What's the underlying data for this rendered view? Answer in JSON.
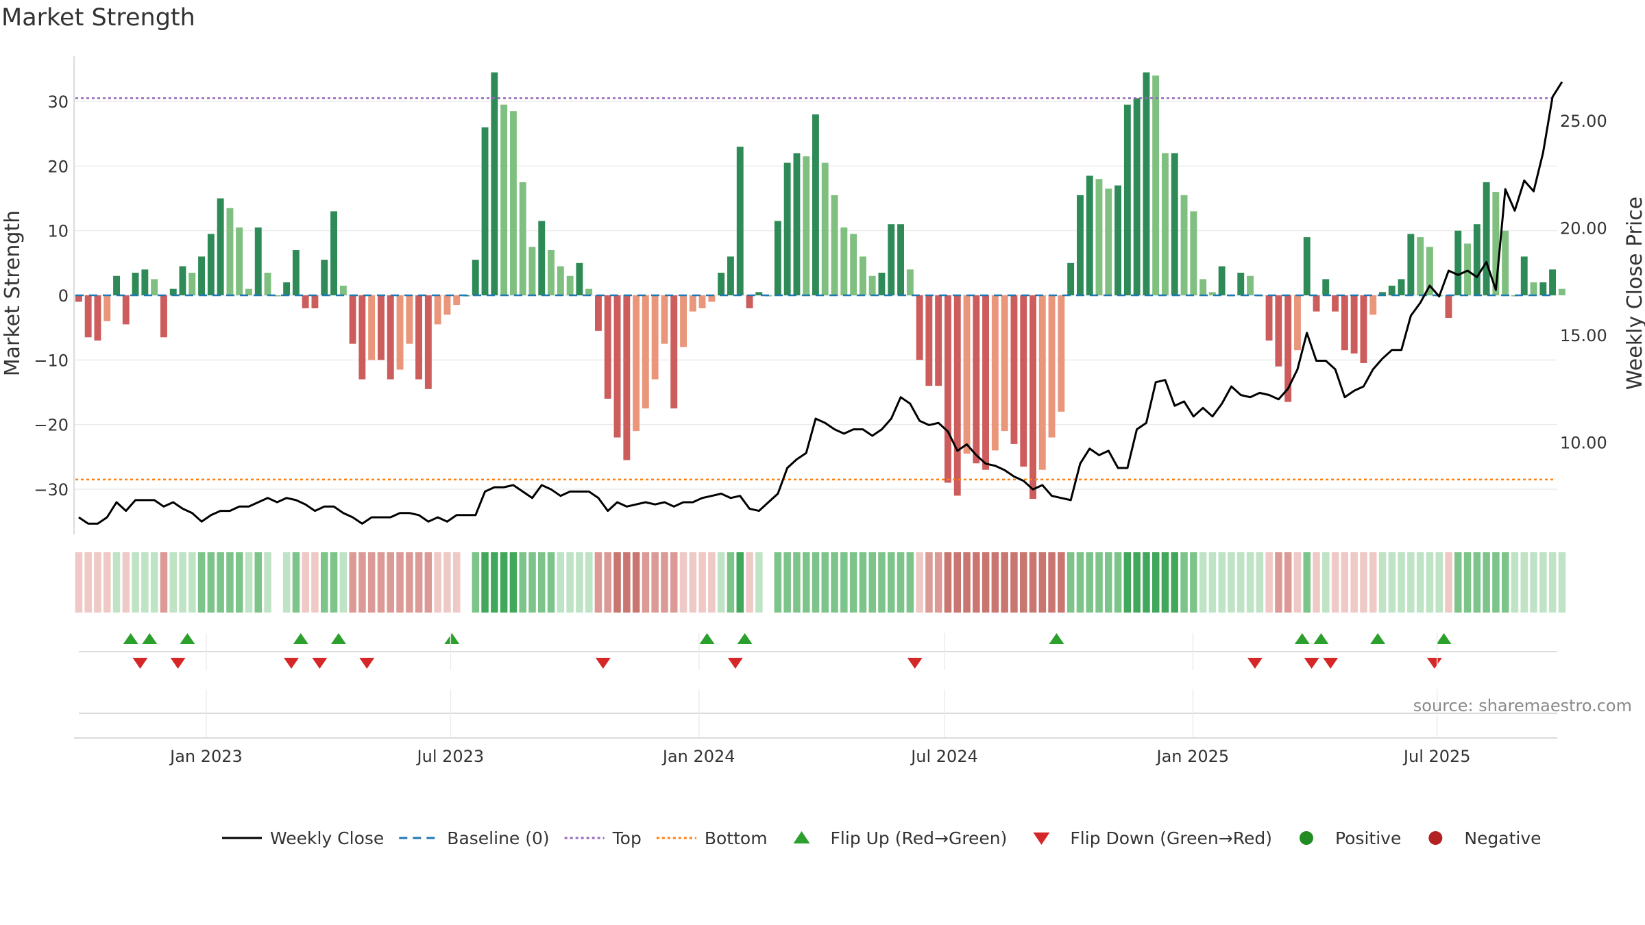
{
  "title": "Market Strength",
  "source": "source: sharemaestro.com",
  "colors": {
    "green_dark": "#2e8b57",
    "green_light": "#7fbf7f",
    "red_dark": "#cd5c5c",
    "red_light": "#e9967a",
    "close_line": "#000000",
    "baseline": "#1f77b4",
    "top_line": "#9467bd",
    "bottom_line": "#ff7f0e",
    "flip_up": "#2ca02c",
    "flip_down": "#d62728",
    "positive": "#228b22",
    "negative": "#b22222"
  },
  "chart_data": {
    "type": "bar",
    "ylabel_left": "Market Strength",
    "ylabel_right": "Weekly Close Price",
    "ylim_left": [
      -37,
      37
    ],
    "ylim_right": [
      5.7,
      28.0
    ],
    "yticks_left": [
      {
        "v": 30,
        "label": "30"
      },
      {
        "v": 20,
        "label": "20"
      },
      {
        "v": 10,
        "label": "10"
      },
      {
        "v": 0,
        "label": "0"
      },
      {
        "v": -10,
        "label": "−10"
      },
      {
        "v": -20,
        "label": "−20"
      },
      {
        "v": -30,
        "label": "−30"
      }
    ],
    "yticks_right": [
      {
        "v": 25,
        "label": "25.00"
      },
      {
        "v": 20,
        "label": "20.00"
      },
      {
        "v": 15,
        "label": "15.00"
      },
      {
        "v": 10,
        "label": "10.00"
      }
    ],
    "top_level": 30.5,
    "bottom_level": -28.5,
    "x_start": "2022-09-25",
    "x_end": "2025-09-28",
    "xticks": [
      {
        "date": "2023-01-01",
        "label": "Jan 2023"
      },
      {
        "date": "2023-07-01",
        "label": "Jul 2023"
      },
      {
        "date": "2024-01-01",
        "label": "Jan 2024"
      },
      {
        "date": "2024-07-01",
        "label": "Jul 2024"
      },
      {
        "date": "2025-01-01",
        "label": "Jan 2025"
      },
      {
        "date": "2025-07-01",
        "label": "Jul 2025"
      }
    ],
    "strength": [
      -1,
      -6.5,
      -7,
      -4,
      3,
      -4.5,
      3.5,
      4,
      2.5,
      -6.5,
      1,
      4.5,
      3.5,
      6,
      9.5,
      15,
      13.5,
      10.5,
      1,
      10.5,
      3.5,
      0,
      2,
      7,
      -2,
      -2,
      5.5,
      13,
      1.5,
      -7.5,
      -13,
      -10,
      -10,
      -13,
      -11.5,
      -7.5,
      -13,
      -14.5,
      -4.5,
      -3,
      -1.5,
      0,
      5.5,
      26,
      34.5,
      29.5,
      28.5,
      17.5,
      7.5,
      11.5,
      7,
      4.5,
      3,
      5,
      1,
      -5.5,
      -16,
      -22,
      -25.5,
      -21,
      -17.5,
      -13,
      -7.5,
      -17.5,
      -8,
      -2.5,
      -2,
      -1,
      3.5,
      6,
      23,
      -2,
      0.5,
      0,
      11.5,
      20.5,
      22,
      21.5,
      28,
      20.5,
      15.5,
      10.5,
      9.5,
      6,
      3,
      3.5,
      11,
      11,
      4,
      -10,
      -14,
      -14,
      -29,
      -31,
      -24.5,
      -26,
      -27,
      -24,
      -21,
      -23,
      -26.5,
      -31.5,
      -27,
      -22,
      -18,
      5,
      15.5,
      18.5,
      18,
      16.5,
      17,
      29.5,
      30.5,
      34.5,
      34,
      22,
      22,
      15.5,
      13,
      2.5,
      0.5,
      4.5,
      0,
      3.5,
      3,
      0,
      -7,
      -11,
      -16.5,
      -8.5,
      9,
      -2.5,
      2.5,
      -2.5,
      -8.5,
      -9,
      -10.5,
      -3,
      0.5,
      1.5,
      2.5,
      9.5,
      9,
      7.5,
      0,
      -3.5,
      10,
      8,
      11,
      17.5,
      16,
      10,
      0,
      6,
      2,
      2,
      4,
      1
    ],
    "close": [
      6.5,
      6.2,
      6.2,
      6.5,
      7.2,
      6.8,
      7.3,
      7.3,
      7.3,
      7.0,
      7.2,
      6.9,
      6.7,
      6.3,
      6.6,
      6.8,
      6.8,
      7.0,
      7.0,
      7.2,
      7.4,
      7.2,
      7.4,
      7.3,
      7.1,
      6.8,
      7.0,
      7.0,
      6.7,
      6.5,
      6.2,
      6.5,
      6.5,
      6.5,
      6.7,
      6.7,
      6.6,
      6.3,
      6.5,
      6.3,
      6.6,
      6.6,
      6.6,
      7.7,
      7.9,
      7.9,
      8.0,
      7.7,
      7.4,
      8.0,
      7.8,
      7.5,
      7.7,
      7.7,
      7.7,
      7.4,
      6.8,
      7.2,
      7.0,
      7.1,
      7.2,
      7.1,
      7.2,
      7.0,
      7.2,
      7.2,
      7.4,
      7.5,
      7.6,
      7.4,
      7.5,
      6.9,
      6.8,
      7.2,
      7.6,
      8.8,
      9.2,
      9.5,
      11.1,
      10.9,
      10.6,
      10.4,
      10.6,
      10.6,
      10.3,
      10.6,
      11.1,
      12.1,
      11.8,
      11.0,
      10.8,
      10.9,
      10.5,
      9.6,
      9.9,
      9.4,
      9.0,
      8.9,
      8.7,
      8.4,
      8.2,
      7.8,
      8.0,
      7.5,
      7.4,
      7.3,
      9.0,
      9.7,
      9.4,
      9.6,
      8.8,
      8.8,
      10.6,
      10.9,
      12.8,
      12.9,
      11.7,
      11.9,
      11.2,
      11.6,
      11.2,
      11.8,
      12.6,
      12.2,
      12.1,
      12.3,
      12.2,
      12.0,
      12.5,
      13.4,
      15.1,
      13.8,
      13.8,
      13.4,
      12.1,
      12.4,
      12.6,
      13.4,
      13.9,
      14.3,
      14.3,
      15.9,
      16.5,
      17.3,
      16.8,
      18.0,
      17.8,
      18.0,
      17.7,
      18.4,
      17.1,
      21.8,
      20.8,
      22.2,
      21.7,
      23.5,
      26.1,
      26.8
    ],
    "band_shades": [
      -1,
      -1,
      -1,
      -1,
      1,
      -1,
      1,
      1,
      1,
      -2,
      1,
      1,
      1,
      2,
      2,
      2,
      2,
      2,
      1,
      2,
      1,
      0,
      1,
      2,
      -1,
      -1,
      2,
      2,
      1,
      -2,
      -2,
      -2,
      -2,
      -2,
      -2,
      -2,
      -2,
      -2,
      -1,
      -1,
      -1,
      0,
      2,
      3,
      3,
      3,
      3,
      2,
      2,
      2,
      2,
      1,
      1,
      1,
      1,
      -2,
      -2,
      -3,
      -3,
      -3,
      -2,
      -2,
      -2,
      -2,
      -1,
      -1,
      -1,
      -1,
      1,
      2,
      3,
      -1,
      1,
      0,
      2,
      2,
      2,
      2,
      2,
      2,
      2,
      2,
      2,
      2,
      2,
      2,
      2,
      2,
      2,
      -1,
      -2,
      -2,
      -3,
      -3,
      -3,
      -3,
      -3,
      -3,
      -3,
      -3,
      -3,
      -3,
      -3,
      -3,
      -3,
      2,
      2,
      2,
      2,
      2,
      2,
      3,
      3,
      3,
      3,
      3,
      3,
      2,
      2,
      1,
      1,
      1,
      1,
      1,
      1,
      1,
      -1,
      -2,
      -2,
      -1,
      2,
      -1,
      1,
      -1,
      -1,
      -1,
      -1,
      -1,
      1,
      1,
      1,
      1,
      1,
      1,
      1,
      -1,
      2,
      2,
      2,
      2,
      2,
      2,
      1,
      1,
      1,
      1,
      1,
      1
    ],
    "flip_up_dates": [
      "2022-11-06",
      "2022-11-20",
      "2022-12-18",
      "2023-03-12",
      "2023-04-09",
      "2023-07-02",
      "2024-01-07",
      "2024-02-04",
      "2024-09-22",
      "2025-03-23",
      "2025-04-06",
      "2025-05-18",
      "2025-07-06"
    ],
    "flip_down_dates": [
      "2022-11-13",
      "2022-12-11",
      "2023-03-05",
      "2023-03-26",
      "2023-04-30",
      "2023-10-22",
      "2024-01-28",
      "2024-06-09",
      "2025-02-16",
      "2025-03-30",
      "2025-04-13",
      "2025-06-29"
    ]
  },
  "legend": [
    {
      "label": "Weekly Close",
      "kind": "line"
    },
    {
      "label": "Baseline (0)",
      "kind": "dash"
    },
    {
      "label": "Top",
      "kind": "dot-purple"
    },
    {
      "label": "Bottom",
      "kind": "dot-orange"
    },
    {
      "label": "Flip Up (Red→Green)",
      "kind": "tri-up"
    },
    {
      "label": "Flip Down (Green→Red)",
      "kind": "tri-down"
    },
    {
      "label": "Positive",
      "kind": "dot-green"
    },
    {
      "label": "Negative",
      "kind": "dot-red"
    }
  ]
}
